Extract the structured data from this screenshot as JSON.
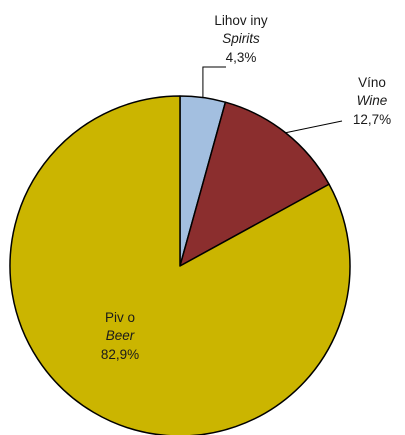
{
  "chart_data": {
    "type": "pie",
    "title": "",
    "start_angle_deg": 0,
    "direction": "clockwise",
    "slices": [
      {
        "label": "Lihov iny",
        "label_en": "Spirits",
        "value": 4.3,
        "value_text": "4,3%",
        "color": "#a3bfe0"
      },
      {
        "label": "Víno",
        "label_en": "Wine",
        "value": 12.7,
        "value_text": "12,7%",
        "color": "#8b2e2e"
      },
      {
        "label": "Piv o",
        "label_en": "Beer",
        "value": 82.9,
        "value_text": "82,9%",
        "color": "#cbb500"
      }
    ]
  }
}
